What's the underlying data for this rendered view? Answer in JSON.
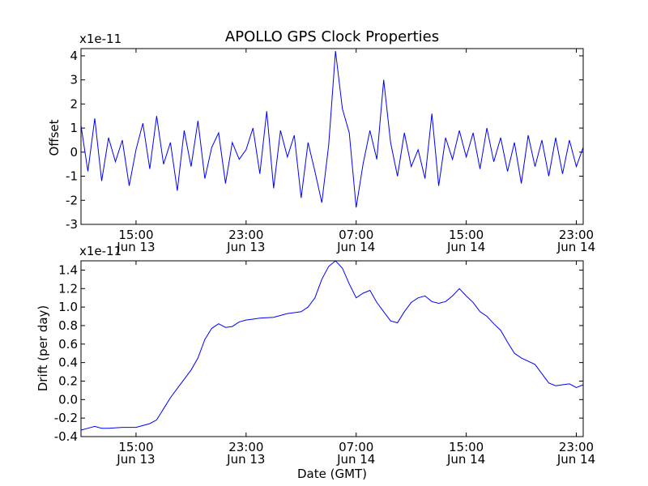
{
  "chart_data": [
    {
      "type": "line",
      "title": "APOLLO GPS Clock Properties",
      "xlabel": "",
      "ylabel": "Offset",
      "y_multiplier": "x1e-11",
      "xlim_hours_from_jun13_0000": [
        11.0,
        47.5
      ],
      "ylim": [
        -3,
        4.3
      ],
      "yticks": [
        -3,
        -2,
        -1,
        0,
        1,
        2,
        3,
        4
      ],
      "ytick_labels": [
        "-3",
        "-2",
        "-1",
        "0",
        "1",
        "2",
        "3",
        "4"
      ],
      "xticks": [
        {
          "x": "Jun 13 15:00",
          "label_time": "15:00",
          "label_date": "Jun 13"
        },
        {
          "x": "Jun 13 23:00",
          "label_time": "23:00",
          "label_date": "Jun 13"
        },
        {
          "x": "Jun 14 07:00",
          "label_time": "07:00",
          "label_date": "Jun 14"
        },
        {
          "x": "Jun 14 15:00",
          "label_time": "15:00",
          "label_date": "Jun 14"
        },
        {
          "x": "Jun 14 23:00",
          "label_time": "23:00",
          "label_date": "Jun 14"
        }
      ],
      "grid": false,
      "line_color": "#0000ff",
      "series": [
        {
          "x": [
            "Jun 13 11:00",
            "Jun 13 11:30",
            "Jun 13 12:00",
            "Jun 13 12:30",
            "Jun 13 13:00",
            "Jun 13 13:30",
            "Jun 13 14:00",
            "Jun 13 14:30",
            "Jun 13 15:00",
            "Jun 13 15:30",
            "Jun 13 16:00",
            "Jun 13 16:30",
            "Jun 13 17:00",
            "Jun 13 17:30",
            "Jun 13 18:00",
            "Jun 13 18:30",
            "Jun 13 19:00",
            "Jun 13 19:30",
            "Jun 13 20:00",
            "Jun 13 20:30",
            "Jun 13 21:00",
            "Jun 13 21:30",
            "Jun 13 22:00",
            "Jun 13 22:30",
            "Jun 13 23:00",
            "Jun 13 23:30",
            "Jun 14 00:00",
            "Jun 14 00:30",
            "Jun 14 01:00",
            "Jun 14 01:30",
            "Jun 14 02:00",
            "Jun 14 02:30",
            "Jun 14 03:00",
            "Jun 14 03:30",
            "Jun 14 04:00",
            "Jun 14 04:30",
            "Jun 14 05:00",
            "Jun 14 05:30",
            "Jun 14 06:00",
            "Jun 14 06:30",
            "Jun 14 07:00",
            "Jun 14 07:30",
            "Jun 14 08:00",
            "Jun 14 08:30",
            "Jun 14 09:00",
            "Jun 14 09:30",
            "Jun 14 10:00",
            "Jun 14 10:30",
            "Jun 14 11:00",
            "Jun 14 11:30",
            "Jun 14 12:00",
            "Jun 14 12:30",
            "Jun 14 13:00",
            "Jun 14 13:30",
            "Jun 14 14:00",
            "Jun 14 14:30",
            "Jun 14 15:00",
            "Jun 14 15:30",
            "Jun 14 16:00",
            "Jun 14 16:30",
            "Jun 14 17:00",
            "Jun 14 17:30",
            "Jun 14 18:00",
            "Jun 14 18:30",
            "Jun 14 19:00",
            "Jun 14 19:30",
            "Jun 14 20:00",
            "Jun 14 20:30",
            "Jun 14 21:00",
            "Jun 14 21:30",
            "Jun 14 22:00",
            "Jun 14 22:30",
            "Jun 14 23:00",
            "Jun 14 23:30"
          ],
          "values": [
            1.1,
            -0.8,
            1.4,
            -1.2,
            0.6,
            -0.4,
            0.5,
            -1.4,
            0.1,
            1.2,
            -0.7,
            1.5,
            -0.5,
            0.4,
            -1.6,
            0.9,
            -0.6,
            1.3,
            -1.1,
            0.2,
            0.8,
            -1.3,
            0.4,
            -0.3,
            0.1,
            1.0,
            -0.9,
            1.7,
            -1.5,
            0.9,
            -0.2,
            0.7,
            -1.9,
            0.4,
            -0.8,
            -2.1,
            0.3,
            4.2,
            1.8,
            0.8,
            -2.3,
            -0.5,
            0.9,
            -0.3,
            3.0,
            0.4,
            -1.0,
            0.8,
            -0.6,
            0.1,
            -1.1,
            1.6,
            -1.4,
            0.6,
            -0.3,
            0.9,
            -0.2,
            0.8,
            -0.7,
            1.0,
            -0.4,
            0.6,
            -0.8,
            0.4,
            -1.3,
            0.7,
            -0.6,
            0.5,
            -1.0,
            0.6,
            -0.9,
            0.5,
            -0.6,
            0.2
          ]
        }
      ]
    },
    {
      "type": "line",
      "title": "",
      "xlabel": "Date (GMT)",
      "ylabel": "Drift (per day)",
      "y_multiplier": "x1e-11",
      "xlim_hours_from_jun13_0000": [
        11.0,
        47.5
      ],
      "ylim": [
        -0.4,
        1.5
      ],
      "yticks": [
        -0.4,
        -0.2,
        0.0,
        0.2,
        0.4,
        0.6,
        0.8,
        1.0,
        1.2,
        1.4
      ],
      "ytick_labels": [
        "-0.4",
        "-0.2",
        "0.0",
        "0.2",
        "0.4",
        "0.6",
        "0.8",
        "1.0",
        "1.2",
        "1.4"
      ],
      "xticks": [
        {
          "x": "Jun 13 15:00",
          "label_time": "15:00",
          "label_date": "Jun 13"
        },
        {
          "x": "Jun 13 23:00",
          "label_time": "23:00",
          "label_date": "Jun 13"
        },
        {
          "x": "Jun 14 07:00",
          "label_time": "07:00",
          "label_date": "Jun 14"
        },
        {
          "x": "Jun 14 15:00",
          "label_time": "15:00",
          "label_date": "Jun 14"
        },
        {
          "x": "Jun 14 23:00",
          "label_time": "23:00",
          "label_date": "Jun 14"
        }
      ],
      "grid": false,
      "line_color": "#0000ff",
      "series": [
        {
          "x": [
            "Jun 13 11:00",
            "Jun 13 11:30",
            "Jun 13 12:00",
            "Jun 13 12:30",
            "Jun 13 13:00",
            "Jun 13 14:00",
            "Jun 13 15:00",
            "Jun 13 16:00",
            "Jun 13 16:30",
            "Jun 13 17:00",
            "Jun 13 17:30",
            "Jun 13 18:00",
            "Jun 13 18:30",
            "Jun 13 19:00",
            "Jun 13 19:30",
            "Jun 13 20:00",
            "Jun 13 20:30",
            "Jun 13 21:00",
            "Jun 13 21:30",
            "Jun 13 22:00",
            "Jun 13 22:30",
            "Jun 13 23:00",
            "Jun 13 23:30",
            "Jun 14 00:00",
            "Jun 14 01:00",
            "Jun 14 02:00",
            "Jun 14 02:30",
            "Jun 14 03:00",
            "Jun 14 03:30",
            "Jun 14 04:00",
            "Jun 14 04:30",
            "Jun 14 05:00",
            "Jun 14 05:30",
            "Jun 14 06:00",
            "Jun 14 06:30",
            "Jun 14 07:00",
            "Jun 14 07:30",
            "Jun 14 08:00",
            "Jun 14 08:30",
            "Jun 14 09:00",
            "Jun 14 09:30",
            "Jun 14 10:00",
            "Jun 14 10:30",
            "Jun 14 11:00",
            "Jun 14 11:30",
            "Jun 14 12:00",
            "Jun 14 12:30",
            "Jun 14 13:00",
            "Jun 14 13:30",
            "Jun 14 14:00",
            "Jun 14 14:30",
            "Jun 14 15:00",
            "Jun 14 15:30",
            "Jun 14 16:00",
            "Jun 14 16:30",
            "Jun 14 17:00",
            "Jun 14 17:30",
            "Jun 14 18:00",
            "Jun 14 18:30",
            "Jun 14 19:00",
            "Jun 14 20:00",
            "Jun 14 21:00",
            "Jun 14 21:30",
            "Jun 14 22:00",
            "Jun 14 22:30",
            "Jun 14 23:00",
            "Jun 14 23:30"
          ],
          "values": [
            -0.33,
            -0.31,
            -0.29,
            -0.31,
            -0.31,
            -0.3,
            -0.3,
            -0.26,
            -0.22,
            -0.1,
            0.02,
            0.12,
            0.22,
            0.32,
            0.45,
            0.65,
            0.77,
            0.82,
            0.78,
            0.79,
            0.84,
            0.86,
            0.87,
            0.88,
            0.89,
            0.93,
            0.94,
            0.95,
            1.0,
            1.1,
            1.3,
            1.44,
            1.5,
            1.42,
            1.25,
            1.1,
            1.15,
            1.18,
            1.05,
            0.95,
            0.85,
            0.83,
            0.95,
            1.05,
            1.1,
            1.12,
            1.06,
            1.04,
            1.06,
            1.12,
            1.2,
            1.12,
            1.05,
            0.95,
            0.9,
            0.82,
            0.75,
            0.62,
            0.5,
            0.45,
            0.38,
            0.18,
            0.15,
            0.16,
            0.17,
            0.13,
            0.16
          ]
        }
      ]
    }
  ]
}
